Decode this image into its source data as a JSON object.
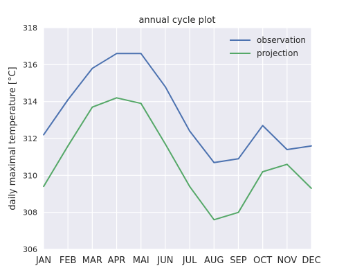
{
  "chart_data": {
    "type": "line",
    "title": "annual cycle plot",
    "xlabel": "",
    "ylabel": "daily maximal temperature [°C]",
    "categories": [
      "JAN",
      "FEB",
      "MAR",
      "APR",
      "MAI",
      "JUN",
      "JUL",
      "AUG",
      "SEP",
      "OCT",
      "NOV",
      "DEC"
    ],
    "ylim": [
      306,
      318
    ],
    "yticks": [
      "306",
      "308",
      "310",
      "312",
      "314",
      "316",
      "318"
    ],
    "grid": true,
    "legend_position": "top-right",
    "series": [
      {
        "name": "observation",
        "color": "#4c72b0",
        "values": [
          312.2,
          314.1,
          315.8,
          316.6,
          316.6,
          314.8,
          312.4,
          310.7,
          310.9,
          312.7,
          311.4,
          311.6
        ]
      },
      {
        "name": "projection",
        "color": "#55a868",
        "values": [
          309.4,
          311.6,
          313.7,
          314.2,
          313.9,
          311.7,
          309.4,
          307.6,
          308.0,
          310.2,
          310.6,
          309.3
        ]
      }
    ]
  }
}
